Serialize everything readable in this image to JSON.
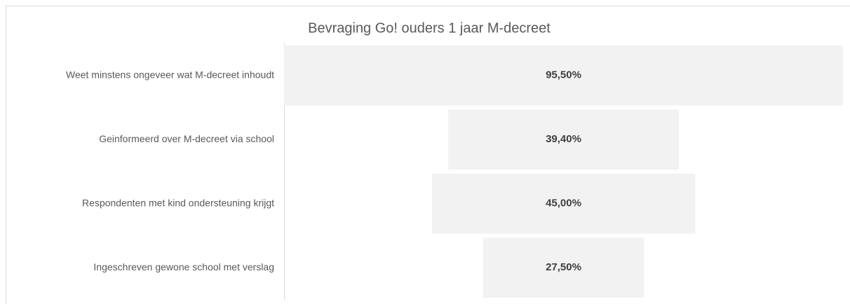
{
  "chart_data": {
    "type": "funnel",
    "title": "Bevraging Go! ouders 1 jaar M-decreet",
    "categories": [
      "Weet minstens ongeveer wat M-decreet  inhoudt",
      "Geinformeerd over M-decreet via school",
      "Respondenten met kind ondersteuning krijgt",
      "Ingeschreven gewone school met verslag"
    ],
    "values": [
      95.5,
      39.4,
      45.0,
      27.5
    ],
    "value_labels": [
      "95,50%",
      "39,40%",
      "45,00%",
      "27,50%"
    ],
    "color": "#f2f2f2"
  }
}
